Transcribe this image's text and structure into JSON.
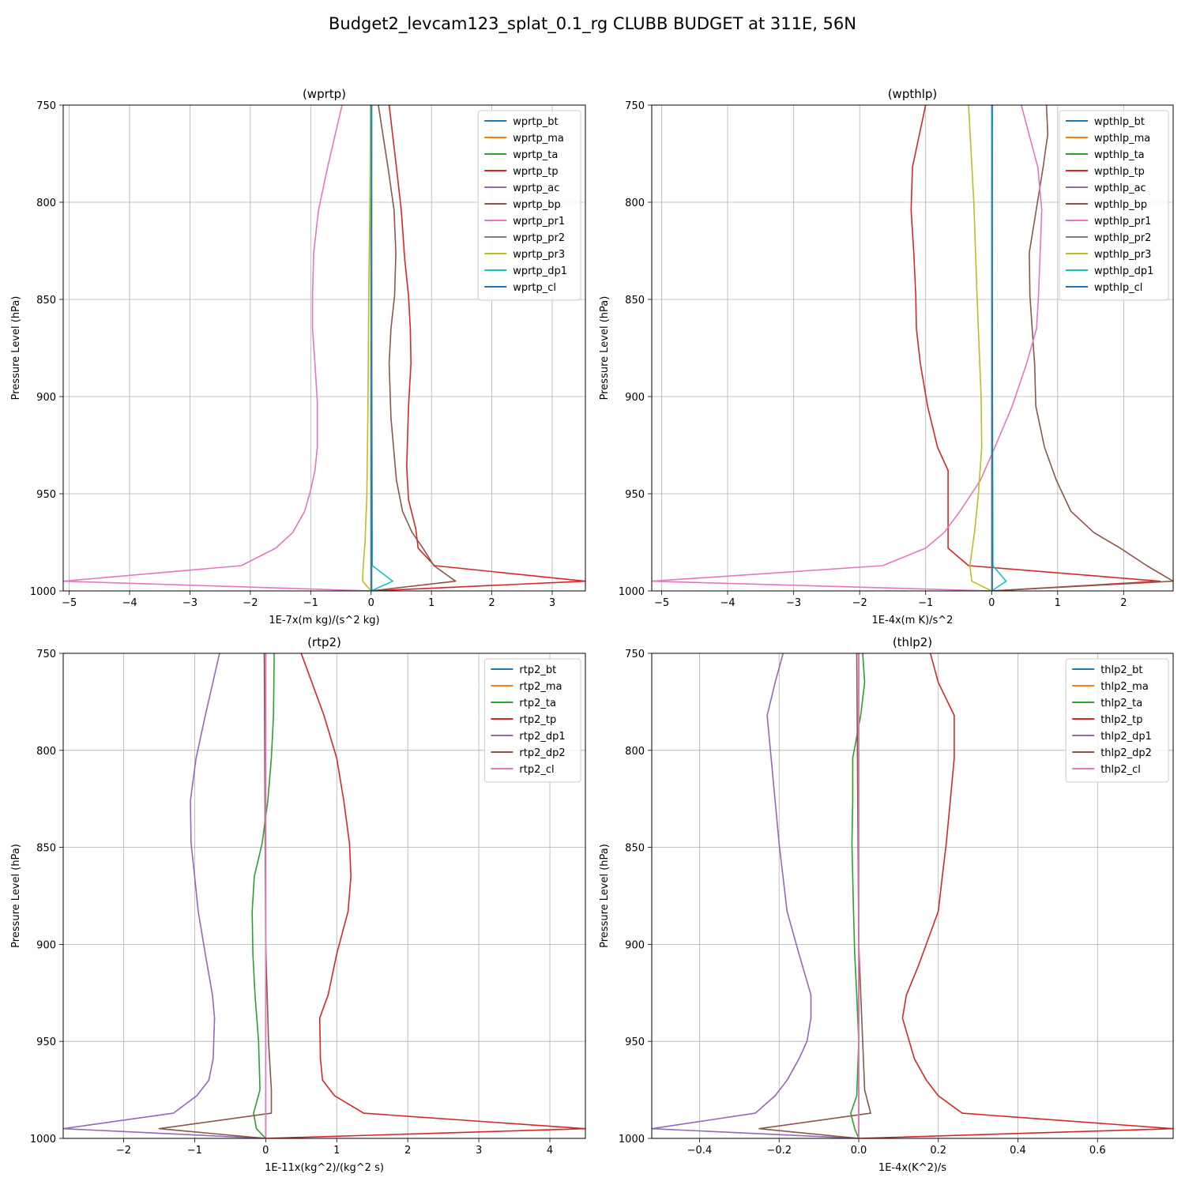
{
  "figure_title": "Budget2_levcam123_splat_0.1_rg CLUBB BUDGET at 311E, 56N",
  "colors": {
    "c0": "#1f77b4",
    "c1": "#ff7f0e",
    "c2": "#2ca02c",
    "c3": "#d62728",
    "c4": "#9467bd",
    "c5": "#8c564b",
    "c6": "#e377c2",
    "c7": "#7f7f7f",
    "c8": "#bcbd22",
    "c9": "#17becf"
  },
  "chart_data": [
    {
      "type": "line",
      "title": "(wprtp)",
      "xlabel": "1E-7x(m kg)/(s^2 kg)",
      "ylabel": "Pressure Level (hPa)",
      "xlim": [
        -5.1,
        3.55
      ],
      "ylim": [
        1000,
        750
      ],
      "xticks": [
        -5,
        -4,
        -3,
        -2,
        -1,
        0,
        1,
        2,
        3
      ],
      "xtick_labels": [
        "−5",
        "−4",
        "−3",
        "−2",
        "−1",
        "0",
        "1",
        "2",
        "3"
      ],
      "yticks": [
        750,
        800,
        850,
        900,
        950,
        1000
      ],
      "ytick_labels": [
        "750",
        "800",
        "850",
        "900",
        "950",
        "1000"
      ],
      "grid": true,
      "legend_position": "top-right",
      "series": [
        {
          "name": "wprtp_bt",
          "color": "c0",
          "p": [
            750,
            1000
          ],
          "x": [
            0,
            0
          ]
        },
        {
          "name": "wprtp_ma",
          "color": "c1",
          "p": [
            750,
            1000
          ],
          "x": [
            0,
            0
          ]
        },
        {
          "name": "wprtp_ta",
          "color": "c2",
          "p": [
            750,
            1000
          ],
          "x": [
            0,
            0
          ]
        },
        {
          "name": "wprtp_tp",
          "color": "c3",
          "p": [
            750,
            782,
            804,
            830,
            848,
            865,
            883,
            905,
            936,
            953,
            968,
            978,
            987,
            995,
            1000
          ],
          "x": [
            0.3,
            0.42,
            0.5,
            0.56,
            0.62,
            0.65,
            0.66,
            0.62,
            0.59,
            0.62,
            0.74,
            0.78,
            1.05,
            3.55,
            0
          ]
        },
        {
          "name": "wprtp_ac",
          "color": "c4",
          "p": [
            750,
            1000
          ],
          "x": [
            0,
            0
          ]
        },
        {
          "name": "wprtp_bp",
          "color": "c5",
          "p": [
            750,
            782,
            804,
            826,
            848,
            865,
            883,
            911,
            943,
            959,
            970,
            978,
            987,
            995,
            1000
          ],
          "x": [
            0.12,
            0.28,
            0.38,
            0.41,
            0.39,
            0.33,
            0.3,
            0.33,
            0.42,
            0.52,
            0.68,
            0.86,
            1.04,
            1.4,
            0
          ]
        },
        {
          "name": "wprtp_pr1",
          "color": "c6",
          "p": [
            750,
            782,
            804,
            826,
            848,
            865,
            883,
            903,
            926,
            938,
            948,
            959,
            970,
            978,
            987,
            995,
            1000
          ],
          "x": [
            -0.48,
            -0.72,
            -0.87,
            -0.95,
            -0.97,
            -0.97,
            -0.93,
            -0.89,
            -0.89,
            -0.93,
            -1.0,
            -1.1,
            -1.3,
            -1.58,
            -2.15,
            -5.1,
            0
          ]
        },
        {
          "name": "wprtp_pr2",
          "color": "c7",
          "p": [
            750,
            1000
          ],
          "x": [
            0,
            0
          ]
        },
        {
          "name": "wprtp_pr3",
          "color": "c8",
          "p": [
            750,
            800,
            850,
            900,
            950,
            975,
            987,
            995,
            1000
          ],
          "x": [
            -0.01,
            -0.02,
            -0.04,
            -0.05,
            -0.07,
            -0.1,
            -0.13,
            -0.14,
            0
          ]
        },
        {
          "name": "wprtp_dp1",
          "color": "c9",
          "p": [
            750,
            987,
            995,
            1000
          ],
          "x": [
            0,
            0.02,
            0.36,
            0
          ]
        },
        {
          "name": "wprtp_cl",
          "color": "c0",
          "p": [
            750,
            1000
          ],
          "x": [
            0.01,
            0.01
          ]
        }
      ]
    },
    {
      "type": "line",
      "title": "(wpthlp)",
      "xlabel": "1E-4x(m K)/s^2",
      "ylabel": "Pressure Level (hPa)",
      "xlim": [
        -5.15,
        2.75
      ],
      "ylim": [
        1000,
        750
      ],
      "xticks": [
        -5,
        -4,
        -3,
        -2,
        -1,
        0,
        1,
        2
      ],
      "xtick_labels": [
        "−5",
        "−4",
        "−3",
        "−2",
        "−1",
        "0",
        "1",
        "2"
      ],
      "yticks": [
        750,
        800,
        850,
        900,
        950,
        1000
      ],
      "ytick_labels": [
        "750",
        "800",
        "850",
        "900",
        "950",
        "1000"
      ],
      "grid": true,
      "legend_position": "top-right",
      "series": [
        {
          "name": "wpthlp_bt",
          "color": "c0",
          "p": [
            750,
            1000
          ],
          "x": [
            0,
            0
          ]
        },
        {
          "name": "wpthlp_ma",
          "color": "c1",
          "p": [
            750,
            1000
          ],
          "x": [
            0,
            0
          ]
        },
        {
          "name": "wpthlp_ta",
          "color": "c2",
          "p": [
            750,
            1000
          ],
          "x": [
            0,
            0
          ]
        },
        {
          "name": "wpthlp_tp",
          "color": "c3",
          "p": [
            750,
            782,
            804,
            826,
            848,
            865,
            883,
            905,
            926,
            938,
            959,
            970,
            978,
            987,
            995,
            1000
          ],
          "x": [
            -1.0,
            -1.2,
            -1.22,
            -1.18,
            -1.15,
            -1.14,
            -1.08,
            -0.97,
            -0.82,
            -0.66,
            -0.66,
            -0.66,
            -0.66,
            -0.35,
            2.55,
            0
          ]
        },
        {
          "name": "wpthlp_ac",
          "color": "c4",
          "p": [
            750,
            1000
          ],
          "x": [
            0,
            0
          ]
        },
        {
          "name": "wpthlp_bp",
          "color": "c5",
          "p": [
            750,
            765,
            782,
            826,
            848,
            883,
            905,
            926,
            943,
            959,
            970,
            978,
            987,
            995,
            1000
          ],
          "x": [
            0.83,
            0.85,
            0.78,
            0.57,
            0.58,
            0.65,
            0.67,
            0.8,
            0.98,
            1.2,
            1.55,
            1.95,
            2.35,
            2.75,
            0
          ]
        },
        {
          "name": "wpthlp_pr1",
          "color": "c6",
          "p": [
            750,
            782,
            804,
            848,
            865,
            883,
            905,
            926,
            943,
            959,
            970,
            978,
            987,
            995,
            1000
          ],
          "x": [
            0.45,
            0.7,
            0.76,
            0.71,
            0.68,
            0.53,
            0.31,
            0.05,
            -0.17,
            -0.48,
            -0.72,
            -1.0,
            -1.65,
            -5.15,
            0
          ]
        },
        {
          "name": "wpthlp_pr2",
          "color": "c7",
          "p": [
            750,
            1000
          ],
          "x": [
            0,
            0
          ]
        },
        {
          "name": "wpthlp_pr3",
          "color": "c8",
          "p": [
            750,
            800,
            850,
            900,
            926,
            950,
            970,
            987,
            995,
            1000
          ],
          "x": [
            -0.35,
            -0.27,
            -0.22,
            -0.16,
            -0.15,
            -0.2,
            -0.26,
            -0.33,
            -0.3,
            0
          ]
        },
        {
          "name": "wpthlp_dp1",
          "color": "c9",
          "p": [
            750,
            987,
            995,
            1000
          ],
          "x": [
            0,
            0.02,
            0.22,
            0
          ]
        },
        {
          "name": "wpthlp_cl",
          "color": "c0",
          "p": [
            750,
            1000
          ],
          "x": [
            0.01,
            0.01
          ]
        }
      ]
    },
    {
      "type": "line",
      "title": "(rtp2)",
      "xlabel": "1E-11x(kg^2)/(kg^2 s)",
      "ylabel": "Pressure Level (hPa)",
      "xlim": [
        -2.85,
        4.5
      ],
      "ylim": [
        1000,
        750
      ],
      "xticks": [
        -2,
        -1,
        0,
        1,
        2,
        3,
        4
      ],
      "xtick_labels": [
        "−2",
        "−1",
        "0",
        "1",
        "2",
        "3",
        "4"
      ],
      "yticks": [
        750,
        800,
        850,
        900,
        950,
        1000
      ],
      "ytick_labels": [
        "750",
        "800",
        "850",
        "900",
        "950",
        "1000"
      ],
      "grid": true,
      "legend_position": "top-right",
      "series": [
        {
          "name": "rtp2_bt",
          "color": "c0",
          "p": [
            750,
            1000
          ],
          "x": [
            0,
            0
          ]
        },
        {
          "name": "rtp2_ma",
          "color": "c1",
          "p": [
            750,
            1000
          ],
          "x": [
            0,
            0
          ]
        },
        {
          "name": "rtp2_ta",
          "color": "c2",
          "p": [
            750,
            782,
            804,
            826,
            848,
            865,
            883,
            905,
            926,
            950,
            975,
            987,
            995,
            1000
          ],
          "x": [
            0.12,
            0.11,
            0.08,
            0.03,
            -0.05,
            -0.16,
            -0.19,
            -0.18,
            -0.15,
            -0.1,
            -0.08,
            -0.17,
            -0.13,
            0
          ]
        },
        {
          "name": "rtp2_tp",
          "color": "c3",
          "p": [
            750,
            782,
            804,
            826,
            848,
            865,
            883,
            905,
            926,
            938,
            959,
            970,
            978,
            987,
            995,
            1000
          ],
          "x": [
            0.5,
            0.82,
            1.0,
            1.1,
            1.18,
            1.2,
            1.16,
            1.0,
            0.88,
            0.76,
            0.77,
            0.8,
            0.97,
            1.38,
            4.5,
            0
          ]
        },
        {
          "name": "rtp2_dp1",
          "color": "c4",
          "p": [
            750,
            782,
            804,
            826,
            848,
            865,
            883,
            905,
            926,
            938,
            959,
            970,
            978,
            987,
            995,
            1000
          ],
          "x": [
            -0.65,
            -0.85,
            -0.98,
            -1.06,
            -1.05,
            -1.0,
            -0.95,
            -0.85,
            -0.75,
            -0.72,
            -0.74,
            -0.8,
            -0.97,
            -1.3,
            -2.85,
            0
          ]
        },
        {
          "name": "rtp2_dp2",
          "color": "c5",
          "p": [
            750,
            900,
            950,
            975,
            987,
            995,
            1000
          ],
          "x": [
            -0.02,
            0.0,
            0.04,
            0.08,
            0.08,
            -1.5,
            0
          ]
        },
        {
          "name": "rtp2_cl",
          "color": "c6",
          "p": [
            750,
            1000
          ],
          "x": [
            0.0,
            0.0
          ]
        }
      ]
    },
    {
      "type": "line",
      "title": "(thlp2)",
      "xlabel": "1E-4x(K^2)/s",
      "ylabel": "Pressure Level (hPa)",
      "xlim": [
        -0.52,
        0.79
      ],
      "ylim": [
        1000,
        750
      ],
      "xticks": [
        -0.4,
        -0.2,
        0.0,
        0.2,
        0.4,
        0.6
      ],
      "xtick_labels": [
        "−0.4",
        "−0.2",
        "0.0",
        "0.2",
        "0.4",
        "0.6"
      ],
      "yticks": [
        750,
        800,
        850,
        900,
        950,
        1000
      ],
      "ytick_labels": [
        "750",
        "800",
        "850",
        "900",
        "950",
        "1000"
      ],
      "grid": true,
      "legend_position": "top-right",
      "series": [
        {
          "name": "thlp2_bt",
          "color": "c0",
          "p": [
            750,
            1000
          ],
          "x": [
            0,
            0
          ]
        },
        {
          "name": "thlp2_ma",
          "color": "c1",
          "p": [
            750,
            1000
          ],
          "x": [
            0,
            0
          ]
        },
        {
          "name": "thlp2_ta",
          "color": "c2",
          "p": [
            750,
            765,
            782,
            804,
            826,
            848,
            883,
            905,
            926,
            950,
            978,
            987,
            995,
            1000
          ],
          "x": [
            0.01,
            0.015,
            0.005,
            -0.015,
            -0.015,
            -0.017,
            -0.013,
            -0.01,
            -0.005,
            0.0,
            -0.005,
            -0.02,
            -0.01,
            0
          ]
        },
        {
          "name": "thlp2_tp",
          "color": "c3",
          "p": [
            750,
            765,
            782,
            804,
            826,
            848,
            865,
            883,
            911,
            926,
            938,
            959,
            970,
            978,
            987,
            995,
            1000
          ],
          "x": [
            0.18,
            0.2,
            0.24,
            0.24,
            0.23,
            0.22,
            0.21,
            0.2,
            0.15,
            0.12,
            0.11,
            0.14,
            0.17,
            0.2,
            0.26,
            0.79,
            0
          ]
        },
        {
          "name": "thlp2_dp1",
          "color": "c4",
          "p": [
            750,
            765,
            782,
            804,
            826,
            848,
            883,
            905,
            926,
            938,
            950,
            959,
            970,
            978,
            987,
            995,
            1000
          ],
          "x": [
            -0.19,
            -0.21,
            -0.23,
            -0.22,
            -0.21,
            -0.2,
            -0.18,
            -0.15,
            -0.12,
            -0.12,
            -0.13,
            -0.15,
            -0.18,
            -0.21,
            -0.26,
            -0.52,
            0
          ]
        },
        {
          "name": "thlp2_dp2",
          "color": "c5",
          "p": [
            750,
            900,
            950,
            975,
            987,
            995,
            1000
          ],
          "x": [
            -0.005,
            0.0,
            0.01,
            0.015,
            0.03,
            -0.25,
            0
          ]
        },
        {
          "name": "thlp2_cl",
          "color": "c6",
          "p": [
            750,
            1000
          ],
          "x": [
            0.0,
            0.0
          ]
        }
      ]
    }
  ]
}
